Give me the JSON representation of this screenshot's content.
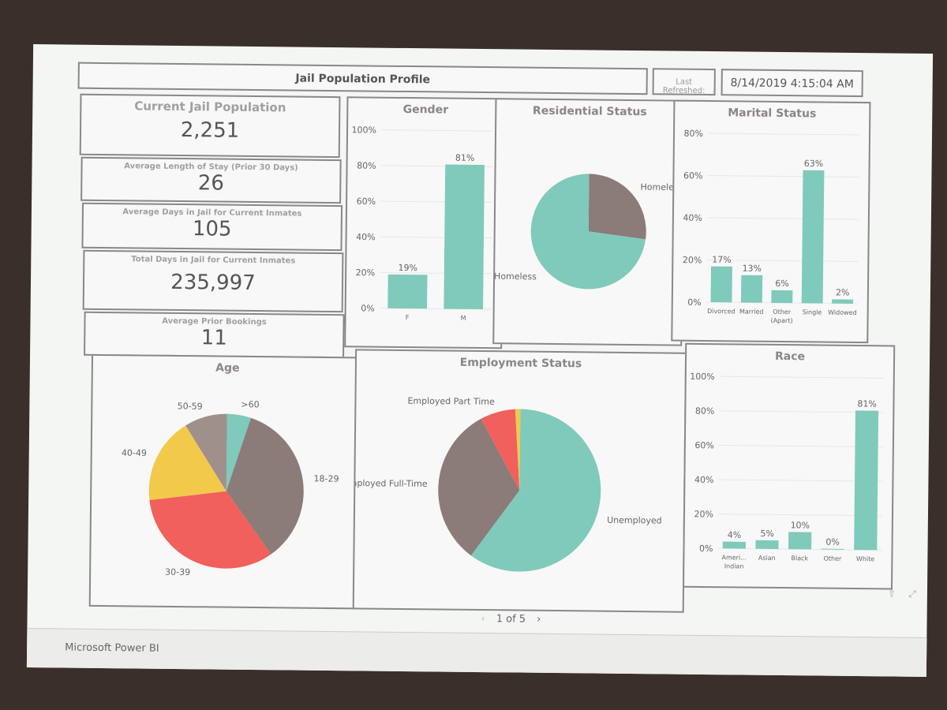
{
  "header": {
    "title": "Jail Population Profile",
    "last_refreshed_label": "Last Refreshed:",
    "last_refreshed_value": "8/14/2019 4:15:04 AM"
  },
  "kpis": [
    {
      "label": "Current Jail Population",
      "value": "2,251"
    },
    {
      "label": "Average Length of Stay (Prior 30 Days)",
      "value": "26"
    },
    {
      "label": "Average Days in Jail for Current Inmates",
      "value": "105"
    },
    {
      "label": "Total Days in Jail for Current Inmates",
      "value": "235,997"
    },
    {
      "label": "Average Prior Bookings",
      "value": "11"
    }
  ],
  "footer": {
    "pager": "1 of 5",
    "prev": "‹",
    "next": "›",
    "app": "Microsoft Power BI"
  },
  "colors": {
    "teal": "#7fcabb",
    "brown": "#8b7b79",
    "red": "#f1605c",
    "yellow": "#f2c94a",
    "graybrown": "#a0908c",
    "orange": "#f0a030"
  },
  "chart_data": [
    {
      "id": "gender",
      "type": "bar",
      "title": "Gender",
      "categories": [
        "F",
        "M"
      ],
      "values": [
        19,
        81
      ],
      "labels": [
        "19%",
        "81%"
      ],
      "ylim": [
        0,
        100
      ],
      "yticks": [
        "0%",
        "20%",
        "40%",
        "60%",
        "80%",
        "100%"
      ],
      "grid": true
    },
    {
      "id": "residential",
      "type": "pie",
      "title": "Residential Status",
      "categories": [
        "Homeless",
        "Not Homeless"
      ],
      "values": [
        27,
        73
      ],
      "colors": [
        "#8b7b79",
        "#7fcabb"
      ]
    },
    {
      "id": "marital",
      "type": "bar",
      "title": "Marital Status",
      "categories": [
        "Divorced",
        "Married",
        "Other (Apart)",
        "Single",
        "Widowed"
      ],
      "values": [
        17,
        13,
        6,
        63,
        2
      ],
      "labels": [
        "17%",
        "13%",
        "6%",
        "63%",
        "2%"
      ],
      "ylim": [
        0,
        80
      ],
      "yticks": [
        "0%",
        "20%",
        "40%",
        "60%",
        "80%"
      ],
      "grid": true
    },
    {
      "id": "age",
      "type": "pie",
      "title": "Age",
      "categories": [
        ">60",
        "18-29",
        "30-39",
        "40-49",
        "50-59"
      ],
      "values": [
        5,
        35,
        33,
        18,
        9
      ],
      "colors": [
        "#7fcabb",
        "#8b7b79",
        "#f1605c",
        "#f2c94a",
        "#a0908c"
      ]
    },
    {
      "id": "employment",
      "type": "pie",
      "title": "Employment Status",
      "categories": [
        "Unemployed",
        "Employed Full-Time",
        "Employed Part Time",
        ""
      ],
      "values": [
        60,
        32,
        7,
        1
      ],
      "colors": [
        "#7fcabb",
        "#8b7b79",
        "#f1605c",
        "#f2c94a"
      ]
    },
    {
      "id": "race",
      "type": "bar",
      "title": "Race",
      "categories": [
        "Ameri... Indian",
        "Asian",
        "Black",
        "Other",
        "White"
      ],
      "values": [
        4,
        5,
        10,
        0,
        81
      ],
      "labels": [
        "4%",
        "5%",
        "10%",
        "0%",
        "81%"
      ],
      "ylim": [
        0,
        100
      ],
      "yticks": [
        "0%",
        "20%",
        "40%",
        "60%",
        "80%",
        "100%"
      ],
      "grid": true
    }
  ]
}
